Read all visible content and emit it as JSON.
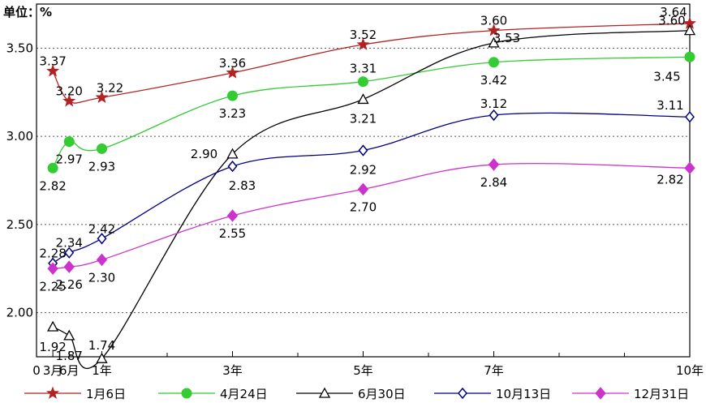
{
  "unit_label": "单位：%",
  "chart_data": {
    "type": "line",
    "categories": [
      "3月",
      "6月",
      "1年",
      "3年",
      "5年",
      "7年",
      "10年"
    ],
    "x_axis_origin_label": "0",
    "x_values_years": [
      0.25,
      0.5,
      1,
      3,
      5,
      7,
      10
    ],
    "ylim": [
      1.75,
      3.75
    ],
    "y_ticks": [
      "2.00",
      "2.50",
      "3.00",
      "3.50"
    ],
    "grid": "horizontal-dotted",
    "legend_position": "bottom",
    "series": [
      {
        "name": "1月6日",
        "color": "#b22222",
        "marker": "star",
        "values": [
          3.37,
          3.2,
          3.22,
          3.36,
          3.52,
          3.6,
          3.64
        ],
        "labels": [
          "3.37",
          "3.20",
          "3.22",
          "3.36",
          "3.52",
          "3.60",
          "3.64"
        ]
      },
      {
        "name": "4月24日",
        "color": "#33cc33",
        "marker": "circle",
        "values": [
          2.82,
          2.97,
          2.93,
          3.23,
          3.31,
          3.42,
          3.45
        ],
        "labels": [
          "2.82",
          "2.97",
          "2.93",
          "3.23",
          "3.31",
          "3.42",
          "3.45"
        ]
      },
      {
        "name": "6月30日",
        "color": "#000000",
        "marker": "triangle",
        "values": [
          1.92,
          1.87,
          1.74,
          2.9,
          3.21,
          3.53,
          3.6
        ],
        "labels": [
          "1.92",
          "1.87",
          "1.74",
          "2.90",
          "3.21",
          "3.53",
          "3.60"
        ]
      },
      {
        "name": "10月13日",
        "color": "#000080",
        "marker": "diamond-open",
        "values": [
          2.28,
          2.34,
          2.42,
          2.83,
          2.92,
          3.12,
          3.11
        ],
        "labels": [
          "2.28",
          "2.34",
          "2.42",
          "2.83",
          "2.92",
          "3.12",
          "3.11"
        ]
      },
      {
        "name": "12月31日",
        "color": "#cc33cc",
        "marker": "diamond",
        "values": [
          2.25,
          2.26,
          2.3,
          2.55,
          2.7,
          2.84,
          2.82
        ],
        "labels": [
          "2.25",
          "2.26",
          "2.30",
          "2.55",
          "2.70",
          "2.84",
          "2.82"
        ]
      }
    ]
  }
}
